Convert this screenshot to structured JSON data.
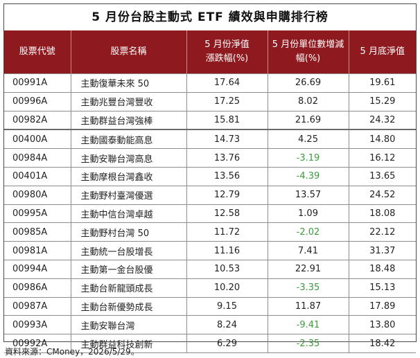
{
  "title": "5 月份台股主動式 ETF 績效與申購排行榜",
  "headers": {
    "code": "股票代號",
    "name": "股票名稱",
    "perf_line1": "5 月份淨值",
    "perf_line2": "漲跌幅(%)",
    "units_line1": "5 月份單位數增減",
    "units_line2": "幅(%)",
    "nav": "5 月底淨值"
  },
  "rows": [
    {
      "code": "00991A",
      "name": "主動復華未來 50",
      "perf": "17.64",
      "units": "26.69",
      "nav": "19.61"
    },
    {
      "code": "00996A",
      "name": "主動兆豐台灣豐收",
      "perf": "17.25",
      "units": "8.02",
      "nav": "15.29"
    },
    {
      "code": "00982A",
      "name": "主動群益台灣強棒",
      "perf": "15.81",
      "units": "21.69",
      "nav": "24.32"
    },
    {
      "code": "00400A",
      "name": "主動國泰動能高息",
      "perf": "14.73",
      "units": "4.25",
      "nav": "14.80"
    },
    {
      "code": "00984A",
      "name": "主動安聯台灣高息",
      "perf": "13.76",
      "units": "-3.19",
      "nav": "16.12"
    },
    {
      "code": "00401A",
      "name": "主動摩根台灣鑫收",
      "perf": "13.56",
      "units": "-4.39",
      "nav": "13.65"
    },
    {
      "code": "00980A",
      "name": "主動野村臺灣優選",
      "perf": "12.79",
      "units": "13.57",
      "nav": "24.52"
    },
    {
      "code": "00995A",
      "name": "主動中信台灣卓越",
      "perf": "12.58",
      "units": "1.09",
      "nav": "18.08"
    },
    {
      "code": "00985A",
      "name": "主動野村台灣 50",
      "perf": "11.72",
      "units": "-2.02",
      "nav": "22.12"
    },
    {
      "code": "00981A",
      "name": "主動統一台股增長",
      "perf": "11.16",
      "units": "7.41",
      "nav": "31.37"
    },
    {
      "code": "00994A",
      "name": "主動第一金台股優",
      "perf": "10.53",
      "units": "22.91",
      "nav": "18.48"
    },
    {
      "code": "00986A",
      "name": "主動台新龍頭成長",
      "perf": "10.20",
      "units": "-3.35",
      "nav": "15.13"
    },
    {
      "code": "00987A",
      "name": "主動台新優勢成長",
      "perf": "9.15",
      "units": "11.87",
      "nav": "17.89"
    },
    {
      "code": "00993A",
      "name": "主動安聯台灣",
      "perf": "8.24",
      "units": "-9.41",
      "nav": "13.80"
    },
    {
      "code": "00992A",
      "name": "主動群益科技創新",
      "perf": "6.29",
      "units": "-2.35",
      "nav": "18.42"
    }
  ],
  "source": "資料來源：CMoney，2026/5/29。",
  "colors": {
    "header_bg": "#8e1a1f",
    "negative": "#3a9a3a"
  }
}
